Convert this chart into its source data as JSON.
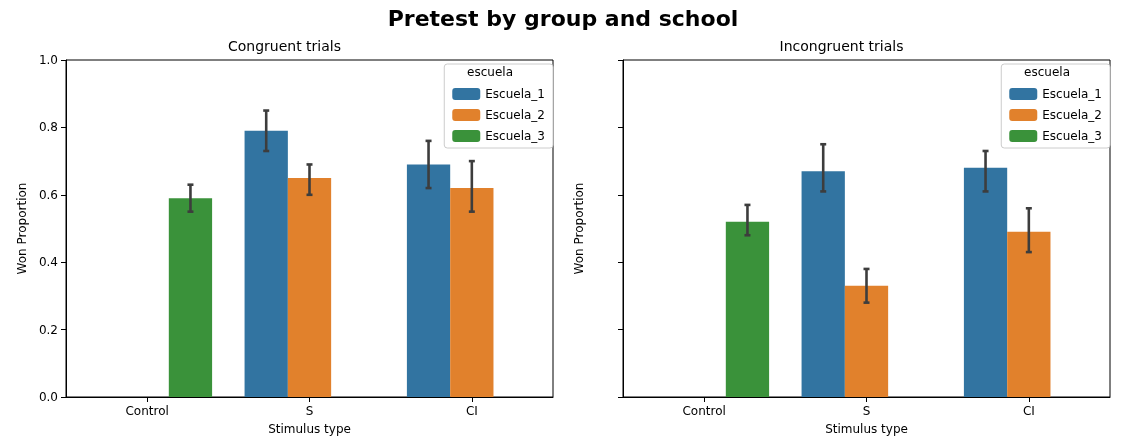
{
  "chart_data": [
    {
      "type": "bar",
      "title": "Pretest by group and school",
      "subtitle": "Congruent trials",
      "xlabel": "Stimulus type",
      "ylabel": "Won Proportion",
      "legend_title": "escuela",
      "legend": "top right",
      "categories": [
        "Control",
        "S",
        "CI"
      ],
      "series": [
        {
          "name": "Escuela_1",
          "color": "#3274a1",
          "values": [
            null,
            0.79,
            0.69
          ],
          "errors": [
            null,
            [
              0.73,
              0.85
            ],
            [
              0.62,
              0.76
            ]
          ]
        },
        {
          "name": "Escuela_2",
          "color": "#e1812c",
          "values": [
            null,
            0.65,
            0.62
          ],
          "errors": [
            null,
            [
              0.6,
              0.69
            ],
            [
              0.55,
              0.7
            ]
          ]
        },
        {
          "name": "Escuela_3",
          "color": "#3a923a",
          "values": [
            0.59,
            null,
            null
          ],
          "errors": [
            [
              0.55,
              0.63
            ],
            null,
            null
          ]
        }
      ],
      "ylim": [
        0,
        1
      ],
      "yticks": [
        {
          "value": 0,
          "label": "0.0"
        },
        {
          "value": 0.2,
          "label": "0.2"
        },
        {
          "value": 0.4,
          "label": "0.4"
        },
        {
          "value": 0.6,
          "label": "0.6"
        },
        {
          "value": 0.8,
          "label": "0.8"
        },
        {
          "value": 1,
          "label": "1.0"
        }
      ],
      "grid": false
    },
    {
      "type": "bar",
      "title": "Incongruent trials",
      "xlabel": "Stimulus type",
      "ylabel": "Won Proportion",
      "legend_title": "escuela",
      "legend": "top right",
      "categories": [
        "Control",
        "S",
        "CI"
      ],
      "series": [
        {
          "name": "Escuela_1",
          "color": "#3274a1",
          "values": [
            null,
            0.67,
            0.68
          ],
          "errors": [
            null,
            [
              0.61,
              0.75
            ],
            [
              0.61,
              0.73
            ]
          ]
        },
        {
          "name": "Escuela_2",
          "color": "#e1812c",
          "values": [
            null,
            0.33,
            0.49
          ],
          "errors": [
            null,
            [
              0.28,
              0.38
            ],
            [
              0.43,
              0.56
            ]
          ]
        },
        {
          "name": "Escuela_3",
          "color": "#3a923a",
          "values": [
            0.52,
            null,
            null
          ],
          "errors": [
            [
              0.48,
              0.57
            ],
            null,
            null
          ]
        }
      ],
      "ylim": [
        0,
        1
      ],
      "yticks": [
        {
          "value": 0,
          "label": null
        },
        {
          "value": 0.2,
          "label": null
        },
        {
          "value": 0.4,
          "label": null
        },
        {
          "value": 0.6,
          "label": null
        },
        {
          "value": 0.8,
          "label": null
        },
        {
          "value": 1,
          "label": null
        }
      ],
      "tick_labels": "x",
      "grid": false
    }
  ]
}
